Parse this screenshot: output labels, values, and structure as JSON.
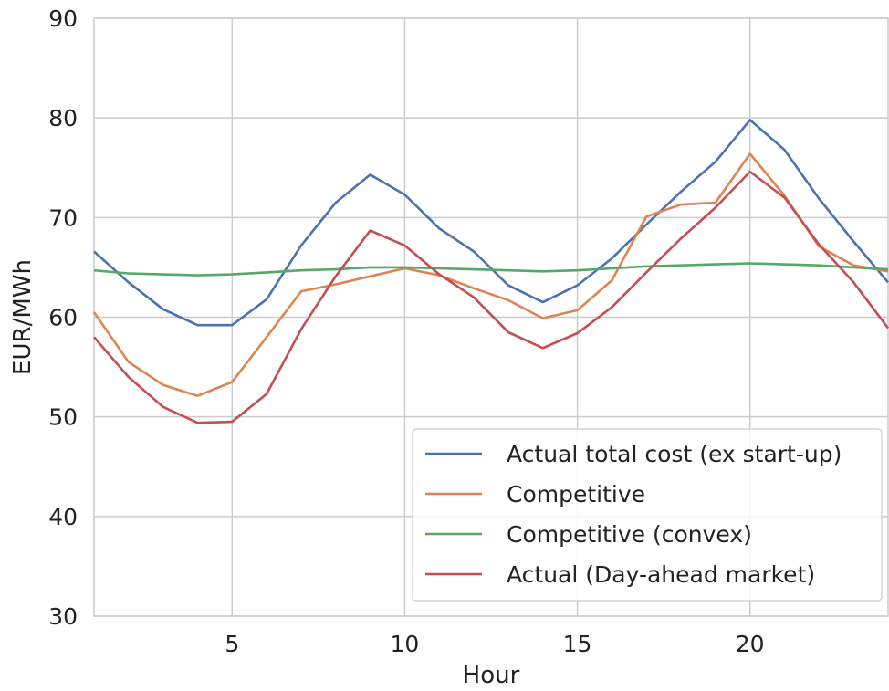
{
  "chart_data": {
    "type": "line",
    "title": "",
    "xlabel": "Hour",
    "ylabel": "EUR/MWh",
    "xlim": [
      1,
      24
    ],
    "ylim": [
      30,
      90
    ],
    "xticks": [
      5,
      10,
      15,
      20
    ],
    "yticks": [
      30,
      40,
      50,
      60,
      70,
      80,
      90
    ],
    "grid": true,
    "legend_position": "bottom-right",
    "x": [
      1,
      2,
      3,
      4,
      5,
      6,
      7,
      8,
      9,
      10,
      11,
      12,
      13,
      14,
      15,
      16,
      17,
      18,
      19,
      20,
      21,
      22,
      23,
      24
    ],
    "series": [
      {
        "name": "Actual total cost (ex start-up)",
        "color": "#4c72b0",
        "values": [
          66.6,
          63.5,
          60.8,
          59.2,
          59.2,
          61.8,
          67.2,
          71.5,
          74.3,
          72.3,
          68.9,
          66.6,
          63.2,
          61.5,
          63.2,
          65.9,
          69.3,
          72.6,
          75.6,
          79.8,
          76.8,
          71.9,
          67.6,
          63.5
        ]
      },
      {
        "name": "Competitive",
        "color": "#dd8452",
        "values": [
          60.5,
          55.5,
          53.2,
          52.1,
          53.5,
          58.0,
          62.6,
          63.3,
          64.1,
          64.9,
          64.2,
          62.9,
          61.7,
          59.9,
          60.7,
          63.7,
          70.1,
          71.3,
          71.5,
          76.4,
          72.2,
          67.1,
          65.2,
          64.6
        ]
      },
      {
        "name": "Competitive (convex)",
        "color": "#55a868",
        "values": [
          64.7,
          64.4,
          64.3,
          64.2,
          64.3,
          64.5,
          64.7,
          64.8,
          65.0,
          65.0,
          64.9,
          64.8,
          64.7,
          64.6,
          64.7,
          64.9,
          65.1,
          65.2,
          65.3,
          65.4,
          65.3,
          65.2,
          65.0,
          64.8
        ]
      },
      {
        "name": "Actual (Day-ahead market)",
        "color": "#c44e52",
        "values": [
          58.0,
          54.0,
          51.0,
          49.4,
          49.5,
          52.3,
          58.8,
          64.1,
          68.7,
          67.2,
          64.3,
          62.0,
          58.5,
          56.9,
          58.4,
          61.0,
          64.5,
          67.9,
          71.0,
          74.6,
          72.0,
          67.3,
          63.5,
          58.9
        ]
      }
    ]
  }
}
